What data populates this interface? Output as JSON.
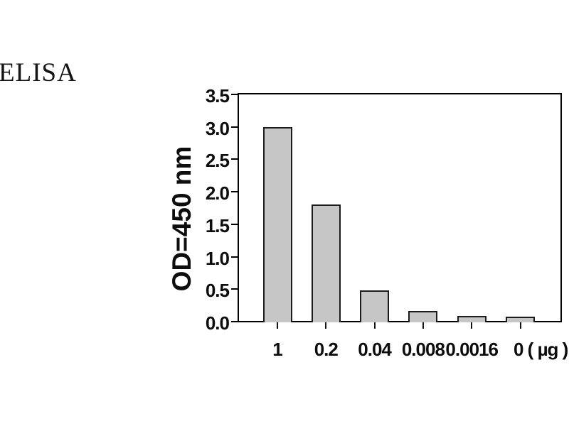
{
  "figure_title": "ELISA",
  "chart_data": {
    "type": "bar",
    "title": "ELISA",
    "categories": [
      "1",
      "0.2",
      "0.04",
      "0.008",
      "0.0016",
      "0"
    ],
    "values": [
      3.0,
      1.8,
      0.48,
      0.16,
      0.09,
      0.08
    ],
    "unit_suffix": "( µg )",
    "xlabel": "",
    "ylabel": "OD=450 nm",
    "ylim": [
      0,
      3.5
    ],
    "yticks": [
      "0.0",
      "0.5",
      "1.0",
      "1.5",
      "2.0",
      "2.5",
      "3.0",
      "3.5"
    ],
    "grid": false,
    "legend": null,
    "colors": {
      "bar_fill": "#c6c6c6",
      "bar_border": "#1c1c1c",
      "axis": "#000000",
      "text": "#0d0d0d",
      "background": "#ffffff"
    }
  }
}
